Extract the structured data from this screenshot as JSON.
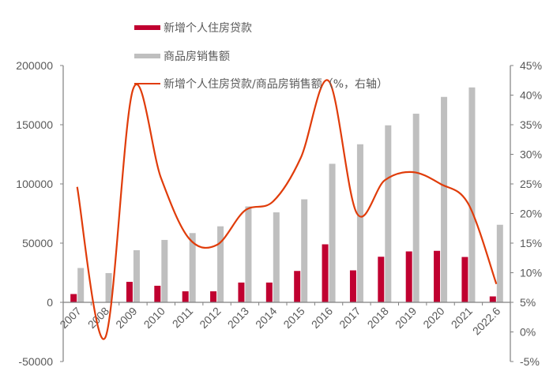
{
  "chart_data": {
    "type": "bar+line",
    "title": "",
    "categories": [
      "2007",
      "2008",
      "2009",
      "2010",
      "2011",
      "2012",
      "2013",
      "2014",
      "2015",
      "2016",
      "2017",
      "2018",
      "2019",
      "2020",
      "2021",
      "2022.6"
    ],
    "series": [
      {
        "name": "新增个人住房贷款",
        "type": "bar",
        "axis": "left",
        "color": "#C00030",
        "values": [
          7000,
          0,
          17300,
          14000,
          9300,
          9300,
          16700,
          16700,
          26500,
          49000,
          27000,
          38500,
          43000,
          43500,
          38300,
          5000
        ]
      },
      {
        "name": "商品房销售额",
        "type": "bar",
        "axis": "left",
        "color": "#BFBFBF",
        "values": [
          29000,
          24700,
          44000,
          52700,
          58500,
          64200,
          81000,
          76000,
          87000,
          117000,
          133500,
          149500,
          159300,
          173500,
          181500,
          65500
        ]
      },
      {
        "name": "新增个人住房贷款/商品房销售额（%，右轴）",
        "type": "line",
        "axis": "right",
        "color": "#E03C0A",
        "values": [
          24.5,
          -1.0,
          41.0,
          26.0,
          15.8,
          14.7,
          20.5,
          22.0,
          29.4,
          42.4,
          20.1,
          25.6,
          27.0,
          25.0,
          21.6,
          8.1
        ]
      }
    ],
    "ylabel_left": "",
    "ylabel_right": "",
    "ylim_left": [
      -50000,
      200000
    ],
    "yticks_left": [
      "200000",
      "150000",
      "100000",
      "50000",
      "0",
      "-50000"
    ],
    "ylim_right": [
      -5,
      45
    ],
    "yticks_right": [
      "45%",
      "40%",
      "35%",
      "30%",
      "25%",
      "20%",
      "15%",
      "10%",
      "5%",
      "0%",
      "-5%"
    ],
    "grid": false,
    "legend_position": "top-inside"
  },
  "legend": {
    "items": [
      {
        "label": "新增个人住房贷款",
        "color": "#C00030",
        "kind": "bar"
      },
      {
        "label": "商品房销售额",
        "color": "#BFBFBF",
        "kind": "bar"
      },
      {
        "label": "新增个人住房贷款/商品房销售额（%，右轴）",
        "color": "#E03C0A",
        "kind": "line"
      }
    ]
  }
}
